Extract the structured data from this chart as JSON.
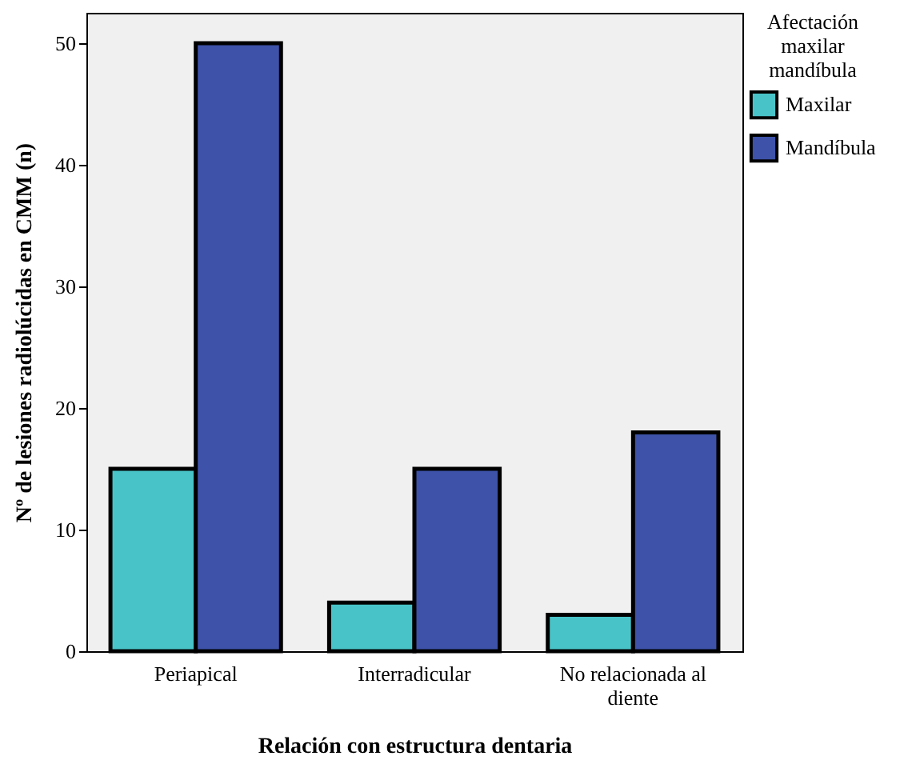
{
  "chart_data": {
    "type": "bar",
    "xlabel": "Relación con estructura dentaria",
    "ylabel": "Nº de lesiones radiolúcidas en CMM (n)",
    "legend_title": "Afectación maxilar mandíbula",
    "categories": [
      "Periapical",
      "Interradicular",
      "No relacionada al diente"
    ],
    "series": [
      {
        "name": "Maxilar",
        "color": "#48c4c8",
        "values": [
          15,
          4,
          3
        ]
      },
      {
        "name": "Mandíbula",
        "color": "#3d52a8",
        "values": [
          50,
          15,
          18
        ]
      }
    ],
    "ylim": [
      0,
      52.5
    ],
    "yticks": [
      0,
      10,
      20,
      30,
      40,
      50
    ],
    "legend": "right",
    "grid": false
  }
}
